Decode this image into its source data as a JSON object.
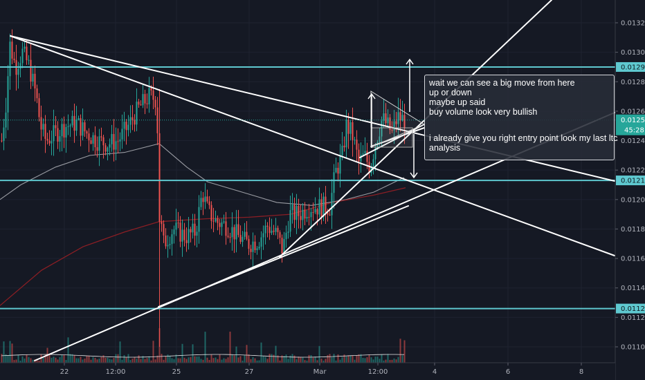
{
  "chart_data": {
    "type": "candlestick",
    "symbol_hint": "",
    "y_axis": {
      "ticks": [
        "0.01100",
        "0.01120",
        "0.01140",
        "0.01160",
        "0.01180",
        "0.01200",
        "0.01220",
        "0.01240",
        "0.01260",
        "0.01280",
        "0.01300",
        "0.01320"
      ],
      "ylim": [
        0.01088,
        0.01332
      ]
    },
    "x_axis": {
      "ticks": [
        "22",
        "12:00",
        "25",
        "27",
        "Mar",
        "12:00",
        "4",
        "6",
        "8"
      ]
    },
    "horizontal_levels": [
      {
        "label": "0.01290",
        "value": 0.0129
      },
      {
        "label": "0.01213",
        "value": 0.01213
      },
      {
        "label": "0.01126",
        "value": 0.01126
      }
    ],
    "last_price": {
      "label": "0.01254",
      "value": 0.01254,
      "countdown": "45:28"
    },
    "annotation": {
      "lines": [
        "wait we can see a big move from here",
        "up or down",
        "maybe up said",
        "buy volume look very bullish",
        "",
        "i already give you right entry point look my last ltc",
        "analysis"
      ]
    },
    "colors": {
      "background": "#151924",
      "up_candle": "#26a69a",
      "down_candle": "#ef5350",
      "level_line": "#5fc9d0",
      "trendline": "#ffffff",
      "ma_white": "#9a9ca3",
      "ma_red": "#8b1e24"
    }
  }
}
